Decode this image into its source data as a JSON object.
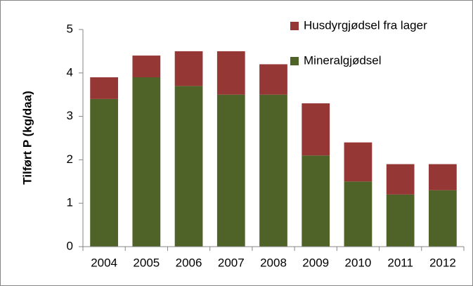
{
  "chart_data": {
    "type": "stacked_bar",
    "y_label": "Tilført P (kg/daa)",
    "categories": [
      "2004",
      "2005",
      "2006",
      "2007",
      "2008",
      "2009",
      "2010",
      "2011",
      "2012"
    ],
    "series": [
      {
        "name": "Mineralgjødsel",
        "color": "#4f6228",
        "values": [
          3.4,
          3.9,
          3.7,
          3.5,
          3.5,
          2.1,
          1.5,
          1.2,
          1.3
        ]
      },
      {
        "name": "Husdyrgjødsel fra lager",
        "color": "#953735",
        "values": [
          0.5,
          0.5,
          0.8,
          1.0,
          0.7,
          1.2,
          0.9,
          0.7,
          0.6
        ]
      }
    ],
    "ylim": [
      0,
      5
    ],
    "yticks": [
      0,
      1,
      2,
      3,
      4,
      5
    ],
    "grid": false,
    "legend": "top-right"
  }
}
